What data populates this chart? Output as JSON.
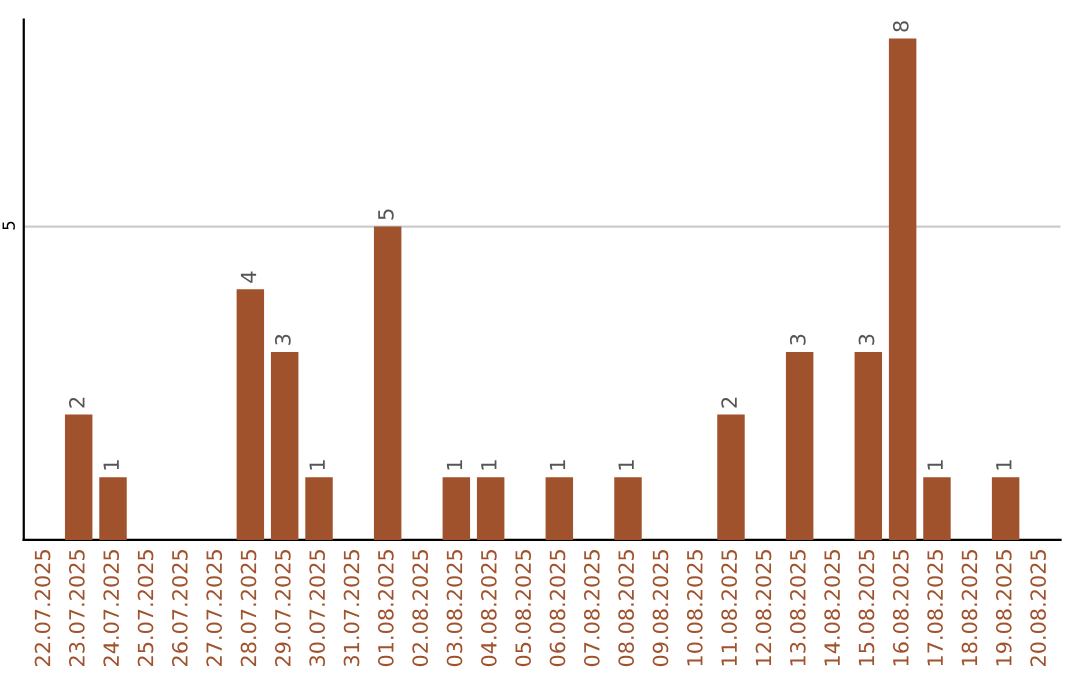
{
  "chart_data": {
    "type": "bar",
    "categories": [
      "22.07.2025",
      "23.07.2025",
      "24.07.2025",
      "25.07.2025",
      "26.07.2025",
      "27.07.2025",
      "28.07.2025",
      "29.07.2025",
      "30.07.2025",
      "31.07.2025",
      "01.08.2025",
      "02.08.2025",
      "03.08.2025",
      "04.08.2025",
      "05.08.2025",
      "06.08.2025",
      "07.08.2025",
      "08.08.2025",
      "09.08.2025",
      "10.08.2025",
      "11.08.2025",
      "12.08.2025",
      "13.08.2025",
      "14.08.2025",
      "15.08.2025",
      "16.08.2025",
      "17.08.2025",
      "18.08.2025",
      "19.08.2025",
      "20.08.2025"
    ],
    "values": [
      0,
      2,
      1,
      0,
      0,
      0,
      4,
      3,
      1,
      0,
      5,
      0,
      1,
      1,
      0,
      1,
      0,
      1,
      0,
      0,
      2,
      0,
      3,
      0,
      3,
      8,
      1,
      0,
      1,
      0
    ],
    "value_labels": [
      null,
      "2",
      "1",
      null,
      null,
      null,
      "4",
      "3",
      "1",
      null,
      "5",
      null,
      "1",
      "1",
      null,
      "1",
      null,
      "1",
      null,
      null,
      "2",
      null,
      "3",
      null,
      "3",
      "8",
      "1",
      null,
      "1",
      null
    ],
    "color": "#a0522d",
    "ylim": [
      0,
      8.3
    ],
    "yticks": [
      5
    ],
    "grid": "y",
    "legend": false
  }
}
